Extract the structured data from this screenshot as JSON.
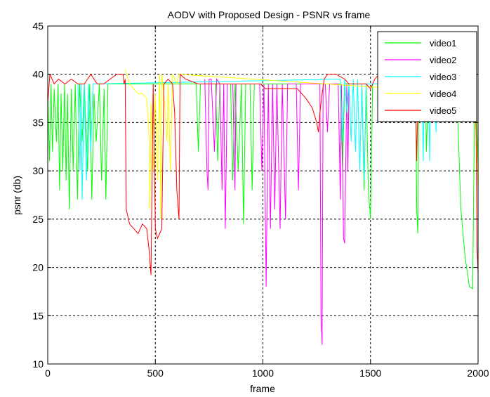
{
  "chart_data": {
    "type": "line",
    "title": "AODV with Proposed Design - PSNR vs frame",
    "xlabel": "frame",
    "ylabel": "psnr (db)",
    "xlim": [
      0,
      2000
    ],
    "ylim": [
      10,
      45
    ],
    "xticks": [
      0,
      500,
      1000,
      1500,
      2000
    ],
    "yticks": [
      10,
      15,
      20,
      25,
      30,
      35,
      40,
      45
    ],
    "grid": true,
    "legend_position": "top-right",
    "series": [
      {
        "name": "video1",
        "color": "#00ff00",
        "points": [
          [
            0,
            38
          ],
          [
            8,
            31
          ],
          [
            15,
            39
          ],
          [
            22,
            32
          ],
          [
            30,
            38.5
          ],
          [
            40,
            33
          ],
          [
            48,
            39
          ],
          [
            55,
            28
          ],
          [
            62,
            38
          ],
          [
            70,
            30
          ],
          [
            78,
            39
          ],
          [
            85,
            29
          ],
          [
            92,
            38
          ],
          [
            100,
            26
          ],
          [
            110,
            38.5
          ],
          [
            118,
            30
          ],
          [
            128,
            39
          ],
          [
            138,
            27
          ],
          [
            148,
            39
          ],
          [
            160,
            33
          ],
          [
            170,
            39
          ],
          [
            185,
            30
          ],
          [
            195,
            39
          ],
          [
            205,
            27
          ],
          [
            215,
            38
          ],
          [
            225,
            33
          ],
          [
            240,
            39
          ],
          [
            250,
            29
          ],
          [
            262,
            38.5
          ],
          [
            270,
            27
          ],
          [
            280,
            39
          ],
          [
            690,
            39
          ],
          [
            700,
            32
          ],
          [
            710,
            39
          ],
          [
            780,
            39
          ],
          [
            790,
            31
          ],
          [
            800,
            39
          ],
          [
            850,
            39
          ],
          [
            860,
            29
          ],
          [
            870,
            39
          ],
          [
            885,
            30
          ],
          [
            900,
            39
          ],
          [
            910,
            24.5
          ],
          [
            920,
            39
          ],
          [
            940,
            39
          ],
          [
            950,
            28
          ],
          [
            960,
            39
          ],
          [
            1360,
            39
          ],
          [
            1370,
            30
          ],
          [
            1380,
            39
          ],
          [
            1460,
            39
          ],
          [
            1470,
            28
          ],
          [
            1480,
            39
          ],
          [
            1490,
            28
          ],
          [
            1500,
            25
          ],
          [
            1510,
            39
          ],
          [
            1710,
            39
          ],
          [
            1715,
            26
          ],
          [
            1720,
            23.5
          ],
          [
            1725,
            39
          ],
          [
            1755,
            39
          ],
          [
            1760,
            32
          ],
          [
            1770,
            39
          ],
          [
            1900,
            39
          ],
          [
            1920,
            26
          ],
          [
            1940,
            21
          ],
          [
            1960,
            18
          ],
          [
            1975,
            17.8
          ],
          [
            1985,
            39
          ],
          [
            1995,
            34
          ],
          [
            2000,
            30
          ]
        ]
      },
      {
        "name": "video2",
        "color": "#ff00ff",
        "points": [
          [
            730,
            39.5
          ],
          [
            740,
            30
          ],
          [
            745,
            28
          ],
          [
            750,
            39.5
          ],
          [
            760,
            39.5
          ],
          [
            775,
            32
          ],
          [
            785,
            39.5
          ],
          [
            800,
            39
          ],
          [
            810,
            28
          ],
          [
            818,
            39
          ],
          [
            825,
            24
          ],
          [
            835,
            39
          ],
          [
            860,
            39
          ],
          [
            870,
            28
          ],
          [
            875,
            39
          ],
          [
            985,
            39
          ],
          [
            995,
            30
          ],
          [
            1005,
            39
          ],
          [
            1015,
            18
          ],
          [
            1025,
            39
          ],
          [
            1035,
            24
          ],
          [
            1045,
            39
          ],
          [
            1055,
            26
          ],
          [
            1065,
            39
          ],
          [
            1080,
            24
          ],
          [
            1090,
            39
          ],
          [
            1105,
            25
          ],
          [
            1115,
            39
          ],
          [
            1155,
            39
          ],
          [
            1165,
            28
          ],
          [
            1175,
            39
          ],
          [
            1265,
            39
          ],
          [
            1270,
            15
          ],
          [
            1275,
            12
          ],
          [
            1280,
            39
          ],
          [
            1290,
            39
          ],
          [
            1300,
            34
          ],
          [
            1310,
            39
          ],
          [
            1350,
            39
          ],
          [
            1360,
            27
          ],
          [
            1365,
            39
          ],
          [
            1375,
            23
          ],
          [
            1380,
            22.5
          ],
          [
            1390,
            39
          ],
          [
            1395,
            30
          ],
          [
            1400,
            39
          ]
        ]
      },
      {
        "name": "video3",
        "color": "#00ffff",
        "points": [
          [
            140,
            39
          ],
          [
            150,
            30
          ],
          [
            155,
            39
          ],
          [
            160,
            27
          ],
          [
            170,
            39
          ],
          [
            180,
            29
          ],
          [
            190,
            39
          ],
          [
            200,
            32
          ],
          [
            210,
            39
          ],
          [
            1360,
            39.5
          ],
          [
            1370,
            33
          ],
          [
            1380,
            39.5
          ],
          [
            1390,
            36
          ],
          [
            1400,
            39
          ],
          [
            1410,
            33
          ],
          [
            1420,
            39.5
          ],
          [
            1430,
            32
          ],
          [
            1440,
            39.5
          ],
          [
            1450,
            30
          ],
          [
            1460,
            39
          ],
          [
            1470,
            29
          ],
          [
            1480,
            39
          ],
          [
            1740,
            39
          ],
          [
            1745,
            31
          ],
          [
            1750,
            39
          ],
          [
            1770,
            39
          ],
          [
            1775,
            31
          ],
          [
            1780,
            39
          ],
          [
            1800,
            39
          ],
          [
            1805,
            34
          ],
          [
            1810,
            39
          ]
        ]
      },
      {
        "name": "video4",
        "color": "#ffff00",
        "points": [
          [
            360,
            40.5
          ],
          [
            380,
            39
          ],
          [
            400,
            38.5
          ],
          [
            420,
            38
          ],
          [
            440,
            38
          ],
          [
            460,
            37.5
          ],
          [
            470,
            34
          ],
          [
            475,
            26
          ],
          [
            480,
            37
          ],
          [
            490,
            30
          ],
          [
            500,
            38
          ],
          [
            510,
            29
          ],
          [
            520,
            40
          ],
          [
            525,
            25
          ],
          [
            530,
            40
          ],
          [
            540,
            38
          ],
          [
            555,
            33
          ],
          [
            560,
            39
          ],
          [
            570,
            30
          ],
          [
            580,
            40
          ],
          [
            600,
            39
          ],
          [
            610,
            40
          ],
          [
            1980,
            38
          ],
          [
            1990,
            34
          ],
          [
            1995,
            32
          ],
          [
            2000,
            28
          ]
        ]
      },
      {
        "name": "video5",
        "color": "#ff0000",
        "points": [
          [
            0,
            37
          ],
          [
            10,
            40
          ],
          [
            30,
            39
          ],
          [
            50,
            39.5
          ],
          [
            80,
            39
          ],
          [
            110,
            39.5
          ],
          [
            140,
            39
          ],
          [
            170,
            39
          ],
          [
            200,
            40
          ],
          [
            230,
            39
          ],
          [
            260,
            39
          ],
          [
            290,
            39.5
          ],
          [
            320,
            40
          ],
          [
            350,
            40
          ],
          [
            355,
            39
          ],
          [
            360,
            39.5
          ],
          [
            365,
            26
          ],
          [
            380,
            24.5
          ],
          [
            400,
            24
          ],
          [
            420,
            23.5
          ],
          [
            440,
            24.5
          ],
          [
            460,
            24
          ],
          [
            470,
            22
          ],
          [
            480,
            19.2
          ],
          [
            485,
            30
          ],
          [
            490,
            39
          ],
          [
            500,
            24
          ],
          [
            510,
            23
          ],
          [
            520,
            23.5
          ],
          [
            530,
            24
          ],
          [
            540,
            39
          ],
          [
            560,
            39.5
          ],
          [
            580,
            39
          ],
          [
            590,
            36
          ],
          [
            600,
            28
          ],
          [
            610,
            25
          ],
          [
            615,
            40
          ],
          [
            640,
            39.5
          ],
          [
            700,
            39
          ],
          [
            760,
            39
          ],
          [
            820,
            39
          ],
          [
            880,
            39
          ],
          [
            940,
            39
          ],
          [
            990,
            39
          ],
          [
            1010,
            38.5
          ],
          [
            1040,
            38.5
          ],
          [
            1080,
            38.5
          ],
          [
            1120,
            38.5
          ],
          [
            1160,
            38.5
          ],
          [
            1200,
            37.5
          ],
          [
            1230,
            36.5
          ],
          [
            1250,
            35
          ],
          [
            1258,
            34
          ],
          [
            1265,
            36
          ],
          [
            1275,
            38
          ],
          [
            1285,
            39.5
          ],
          [
            1300,
            40
          ],
          [
            1340,
            40
          ],
          [
            1380,
            39.5
          ],
          [
            1400,
            39
          ],
          [
            1440,
            39
          ],
          [
            1480,
            39
          ],
          [
            1500,
            38.5
          ],
          [
            1520,
            39.5
          ],
          [
            1540,
            40
          ],
          [
            1580,
            39.5
          ],
          [
            1620,
            39.5
          ],
          [
            1660,
            39.5
          ],
          [
            1700,
            39.5
          ],
          [
            1710,
            37
          ],
          [
            1715,
            31
          ],
          [
            1720,
            37
          ],
          [
            1740,
            39.5
          ],
          [
            1780,
            40
          ],
          [
            1830,
            40
          ],
          [
            1880,
            40
          ],
          [
            1930,
            39.5
          ],
          [
            1960,
            39
          ],
          [
            1975,
            36
          ],
          [
            1985,
            35
          ],
          [
            1990,
            37
          ],
          [
            1995,
            22
          ],
          [
            2000,
            19.5
          ]
        ]
      }
    ]
  }
}
